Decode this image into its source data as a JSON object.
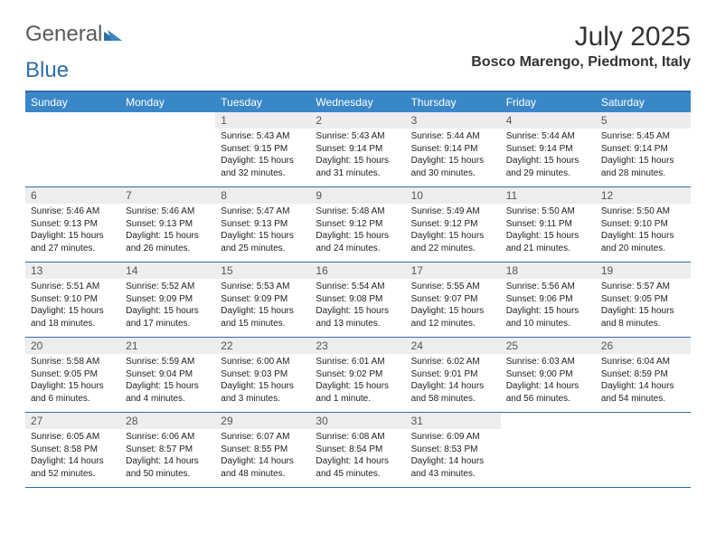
{
  "logo": {
    "part1": "General",
    "part2": "Blue"
  },
  "title": "July 2025",
  "subtitle": "Bosco Marengo, Piedmont, Italy",
  "colors": {
    "header_blue": "#3a87c8",
    "rule_blue": "#2f6fa7",
    "daynum_bg": "#ededed",
    "text": "#222222",
    "logo_gray": "#5a5a5a"
  },
  "day_names": [
    "Sunday",
    "Monday",
    "Tuesday",
    "Wednesday",
    "Thursday",
    "Friday",
    "Saturday"
  ],
  "weeks": [
    [
      null,
      null,
      {
        "n": "1",
        "sunrise": "5:43 AM",
        "sunset": "9:15 PM",
        "daylight": "15 hours and 32 minutes."
      },
      {
        "n": "2",
        "sunrise": "5:43 AM",
        "sunset": "9:14 PM",
        "daylight": "15 hours and 31 minutes."
      },
      {
        "n": "3",
        "sunrise": "5:44 AM",
        "sunset": "9:14 PM",
        "daylight": "15 hours and 30 minutes."
      },
      {
        "n": "4",
        "sunrise": "5:44 AM",
        "sunset": "9:14 PM",
        "daylight": "15 hours and 29 minutes."
      },
      {
        "n": "5",
        "sunrise": "5:45 AM",
        "sunset": "9:14 PM",
        "daylight": "15 hours and 28 minutes."
      }
    ],
    [
      {
        "n": "6",
        "sunrise": "5:46 AM",
        "sunset": "9:13 PM",
        "daylight": "15 hours and 27 minutes."
      },
      {
        "n": "7",
        "sunrise": "5:46 AM",
        "sunset": "9:13 PM",
        "daylight": "15 hours and 26 minutes."
      },
      {
        "n": "8",
        "sunrise": "5:47 AM",
        "sunset": "9:13 PM",
        "daylight": "15 hours and 25 minutes."
      },
      {
        "n": "9",
        "sunrise": "5:48 AM",
        "sunset": "9:12 PM",
        "daylight": "15 hours and 24 minutes."
      },
      {
        "n": "10",
        "sunrise": "5:49 AM",
        "sunset": "9:12 PM",
        "daylight": "15 hours and 22 minutes."
      },
      {
        "n": "11",
        "sunrise": "5:50 AM",
        "sunset": "9:11 PM",
        "daylight": "15 hours and 21 minutes."
      },
      {
        "n": "12",
        "sunrise": "5:50 AM",
        "sunset": "9:10 PM",
        "daylight": "15 hours and 20 minutes."
      }
    ],
    [
      {
        "n": "13",
        "sunrise": "5:51 AM",
        "sunset": "9:10 PM",
        "daylight": "15 hours and 18 minutes."
      },
      {
        "n": "14",
        "sunrise": "5:52 AM",
        "sunset": "9:09 PM",
        "daylight": "15 hours and 17 minutes."
      },
      {
        "n": "15",
        "sunrise": "5:53 AM",
        "sunset": "9:09 PM",
        "daylight": "15 hours and 15 minutes."
      },
      {
        "n": "16",
        "sunrise": "5:54 AM",
        "sunset": "9:08 PM",
        "daylight": "15 hours and 13 minutes."
      },
      {
        "n": "17",
        "sunrise": "5:55 AM",
        "sunset": "9:07 PM",
        "daylight": "15 hours and 12 minutes."
      },
      {
        "n": "18",
        "sunrise": "5:56 AM",
        "sunset": "9:06 PM",
        "daylight": "15 hours and 10 minutes."
      },
      {
        "n": "19",
        "sunrise": "5:57 AM",
        "sunset": "9:05 PM",
        "daylight": "15 hours and 8 minutes."
      }
    ],
    [
      {
        "n": "20",
        "sunrise": "5:58 AM",
        "sunset": "9:05 PM",
        "daylight": "15 hours and 6 minutes."
      },
      {
        "n": "21",
        "sunrise": "5:59 AM",
        "sunset": "9:04 PM",
        "daylight": "15 hours and 4 minutes."
      },
      {
        "n": "22",
        "sunrise": "6:00 AM",
        "sunset": "9:03 PM",
        "daylight": "15 hours and 3 minutes."
      },
      {
        "n": "23",
        "sunrise": "6:01 AM",
        "sunset": "9:02 PM",
        "daylight": "15 hours and 1 minute."
      },
      {
        "n": "24",
        "sunrise": "6:02 AM",
        "sunset": "9:01 PM",
        "daylight": "14 hours and 58 minutes."
      },
      {
        "n": "25",
        "sunrise": "6:03 AM",
        "sunset": "9:00 PM",
        "daylight": "14 hours and 56 minutes."
      },
      {
        "n": "26",
        "sunrise": "6:04 AM",
        "sunset": "8:59 PM",
        "daylight": "14 hours and 54 minutes."
      }
    ],
    [
      {
        "n": "27",
        "sunrise": "6:05 AM",
        "sunset": "8:58 PM",
        "daylight": "14 hours and 52 minutes."
      },
      {
        "n": "28",
        "sunrise": "6:06 AM",
        "sunset": "8:57 PM",
        "daylight": "14 hours and 50 minutes."
      },
      {
        "n": "29",
        "sunrise": "6:07 AM",
        "sunset": "8:55 PM",
        "daylight": "14 hours and 48 minutes."
      },
      {
        "n": "30",
        "sunrise": "6:08 AM",
        "sunset": "8:54 PM",
        "daylight": "14 hours and 45 minutes."
      },
      {
        "n": "31",
        "sunrise": "6:09 AM",
        "sunset": "8:53 PM",
        "daylight": "14 hours and 43 minutes."
      },
      null,
      null
    ]
  ],
  "labels": {
    "sunrise": "Sunrise:",
    "sunset": "Sunset:",
    "daylight": "Daylight:"
  }
}
